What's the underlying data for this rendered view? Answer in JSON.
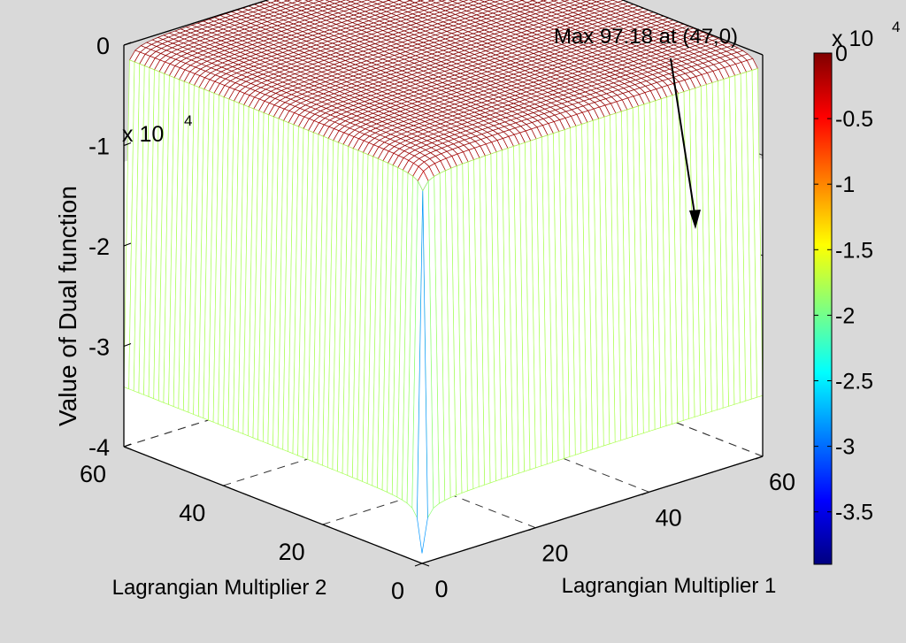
{
  "chart_data": {
    "type": "surface",
    "title": "",
    "annotation": "Max 97.18 at (47,0)",
    "xlabel": "Lagrangian Multiplier 1",
    "ylabel": "Lagrangian Multiplier 2",
    "zlabel": "Value of Dual function",
    "xlim": [
      0,
      60
    ],
    "ylim": [
      0,
      60
    ],
    "zlim": [
      -40000,
      0
    ],
    "x_ticks": [
      "0",
      "20",
      "40",
      "60"
    ],
    "y_ticks": [
      "0",
      "20",
      "40",
      "60"
    ],
    "z_ticks": [
      "0",
      "-1",
      "-2",
      "-3",
      "-4"
    ],
    "z_multiplier": "x 10",
    "z_multiplier_exp": "4",
    "grid": true,
    "max_point": {
      "x": 47,
      "y": 0,
      "z": 97.18
    },
    "min_point": {
      "x": 0,
      "y": 0,
      "z": -39000
    },
    "colorbar": {
      "ticks": [
        "0",
        "-0.5",
        "-1",
        "-1.5",
        "-2",
        "-2.5",
        "-3",
        "-3.5"
      ],
      "multiplier": "x 10",
      "multiplier_exp": "4",
      "range": [
        -39000,
        0
      ],
      "colormap": "jet"
    },
    "colors": {
      "background": "#d9d9d9",
      "surface_line": "#d4504a",
      "surface_fill": "#ffffff"
    }
  }
}
